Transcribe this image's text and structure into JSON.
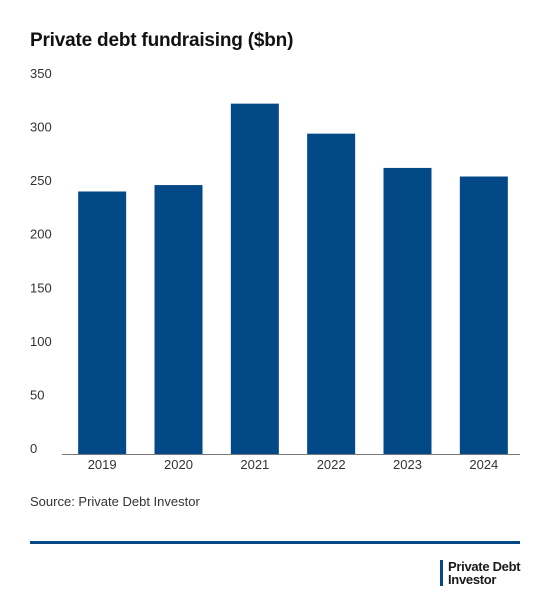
{
  "title": "Private debt fundraising ($bn)",
  "source": "Source: Private Debt Investor",
  "logo": {
    "line1": "Private Debt",
    "line2": "Investor",
    "name": "private-debt-investor-logo"
  },
  "colors": {
    "bar": "#034887",
    "rule": "#034887",
    "axis": "#333333",
    "text": "#333333"
  },
  "chart_data": {
    "type": "bar",
    "categories": [
      "2019",
      "2020",
      "2021",
      "2022",
      "2023",
      "2024"
    ],
    "values": [
      245,
      251,
      327,
      299,
      267,
      259
    ],
    "title": "Private debt fundraising ($bn)",
    "xlabel": "",
    "ylabel": "",
    "ylim": [
      0,
      350
    ],
    "yticks": [
      0,
      50,
      100,
      150,
      200,
      250,
      300,
      350
    ],
    "grid": false,
    "legend": "none"
  }
}
